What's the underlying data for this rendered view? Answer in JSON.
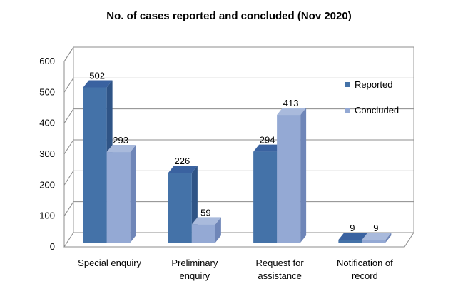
{
  "chart_data": {
    "type": "bar",
    "title": "No. of cases reported and concluded (Nov 2020)",
    "categories": [
      [
        "Special enquiry"
      ],
      [
        "Preliminary",
        "enquiry"
      ],
      [
        "Request for",
        "assistance"
      ],
      [
        "Notification of",
        "record"
      ]
    ],
    "series": [
      {
        "name": "Reported",
        "values": [
          502,
          226,
          294,
          9
        ],
        "color": "#4472a8",
        "side": "#2f5486",
        "top": "#3a62a0"
      },
      {
        "name": "Concluded",
        "values": [
          293,
          59,
          413,
          9
        ],
        "color": "#94a9d4",
        "side": "#6f86b8",
        "top": "#a9badc"
      }
    ],
    "yticks": [
      0,
      100,
      200,
      300,
      400,
      500,
      600
    ],
    "ylim": [
      0,
      600
    ],
    "grid": true,
    "legend": "right",
    "three_d": true
  }
}
